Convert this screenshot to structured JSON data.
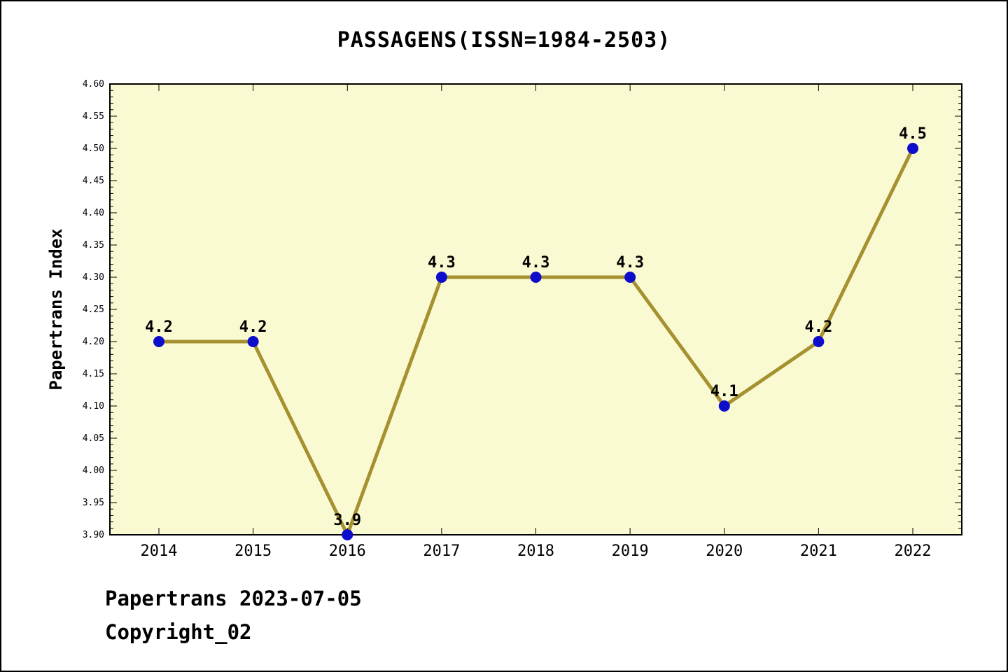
{
  "page": {
    "footer_line1": "Papertrans 2023-07-05",
    "footer_line2": "Copyright_02"
  },
  "chart_data": {
    "type": "line",
    "title": "PASSAGENS(ISSN=1984-2503)",
    "xlabel": "",
    "ylabel": "Papertrans Index",
    "categories": [
      "2014",
      "2015",
      "2016",
      "2017",
      "2018",
      "2019",
      "2020",
      "2021",
      "2022"
    ],
    "values": [
      4.2,
      4.2,
      3.9,
      4.3,
      4.3,
      4.3,
      4.1,
      4.2,
      4.5
    ],
    "point_labels": [
      "4.2",
      "4.2",
      "3.9",
      "4.3",
      "4.3",
      "4.3",
      "4.1",
      "4.2",
      "4.5"
    ],
    "ylim": [
      3.9,
      4.6
    ],
    "ytick_step": 0.05,
    "ytick_minor_step": 0.01,
    "grid": false,
    "legend": "none",
    "colors": {
      "line": "#A5912F",
      "marker": "#0D0DCB",
      "plot_bg": "#FAFAD2",
      "axis": "#000000",
      "text": "#000000"
    }
  }
}
